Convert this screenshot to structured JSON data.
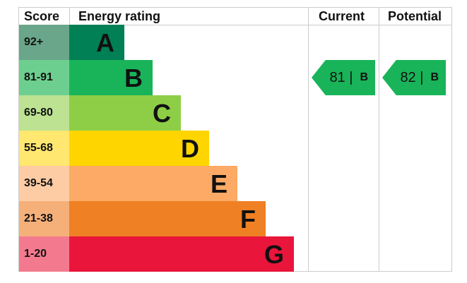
{
  "chart_data": {
    "type": "table",
    "headers": {
      "score": "Score",
      "rating": "Energy rating",
      "current": "Current",
      "potential": "Potential"
    },
    "bands": [
      {
        "score": "92+",
        "letter": "A",
        "color": "#008054",
        "score_color": "#6aa68a"
      },
      {
        "score": "81-91",
        "letter": "B",
        "color": "#19b459",
        "score_color": "#6dcf8f"
      },
      {
        "score": "69-80",
        "letter": "C",
        "color": "#8dce46",
        "score_color": "#bde292"
      },
      {
        "score": "55-68",
        "letter": "D",
        "color": "#ffd500",
        "score_color": "#ffe770"
      },
      {
        "score": "39-54",
        "letter": "E",
        "color": "#fcaa65",
        "score_color": "#fdcca4"
      },
      {
        "score": "21-38",
        "letter": "F",
        "color": "#ef8023",
        "score_color": "#f5b07a"
      },
      {
        "score": "1-20",
        "letter": "G",
        "color": "#e9153b",
        "score_color": "#f37a8e"
      }
    ],
    "current": {
      "value": "81 |",
      "letter": "B",
      "color": "#19b459"
    },
    "potential": {
      "value": "82 |",
      "letter": "B",
      "color": "#19b459"
    }
  }
}
